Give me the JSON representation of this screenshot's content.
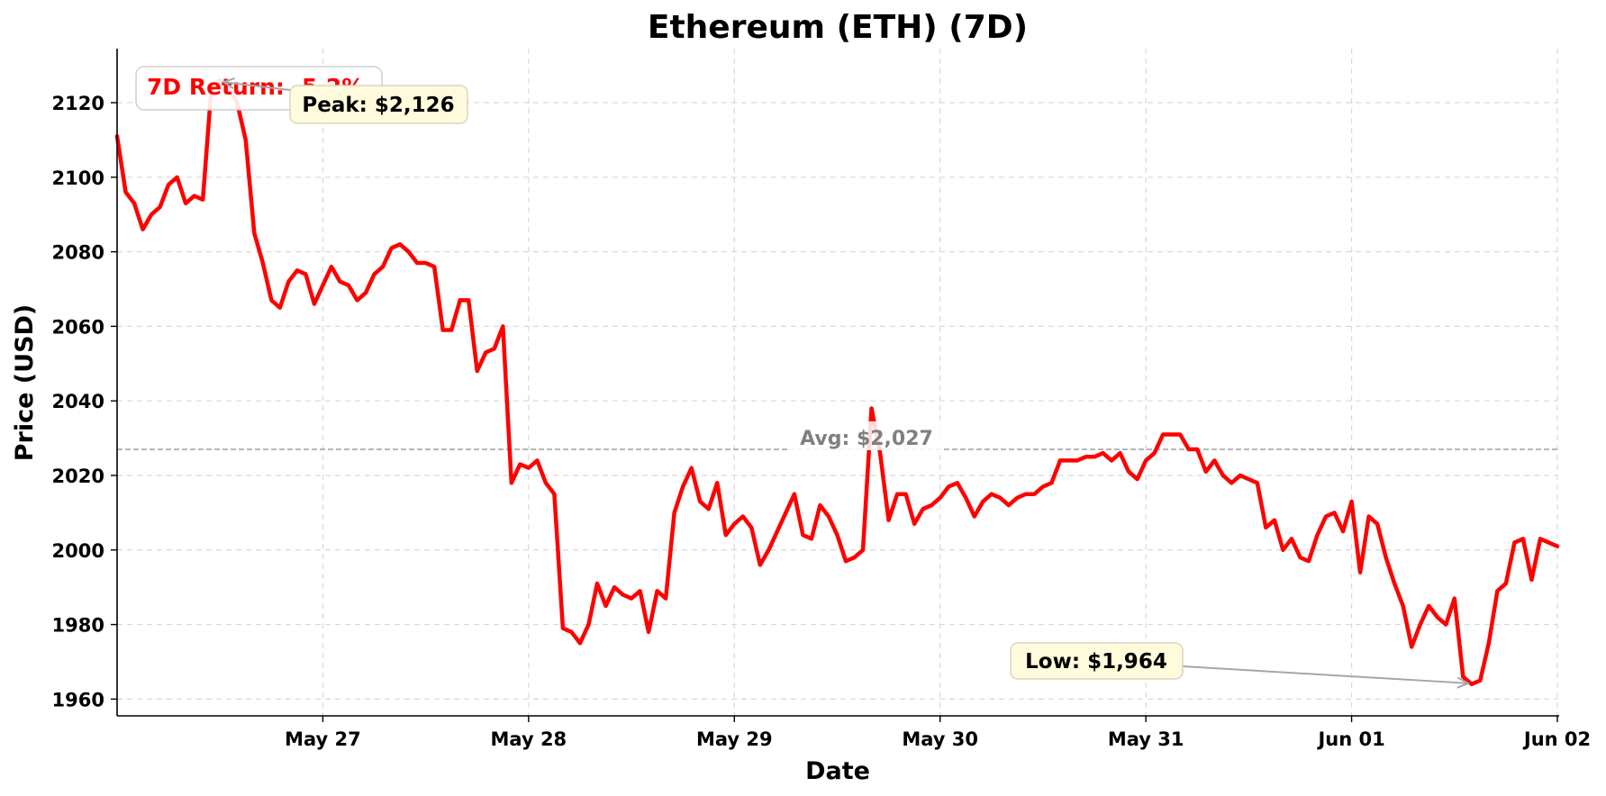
{
  "chart_data": {
    "type": "line",
    "title": "Ethereum (ETH) (7D)",
    "xlabel": "Date",
    "ylabel": "Price (USD)",
    "x_tick_labels": [
      "May 27",
      "May 28",
      "May 29",
      "May 30",
      "May 31",
      "Jun 01",
      "Jun 02"
    ],
    "y_ticks": [
      1960,
      1980,
      2000,
      2020,
      2040,
      2060,
      2080,
      2100,
      2120
    ],
    "ylim": [
      1955.5,
      2134.5
    ],
    "xlim": [
      "2025-05-26 00:00",
      "2025-06-02 00:00"
    ],
    "grid": true,
    "line_color": "#ff0000",
    "series": [
      {
        "name": "",
        "x_hours": [
          0,
          1,
          2,
          3,
          4,
          5,
          6,
          7,
          8,
          9,
          10,
          11,
          12,
          13,
          14,
          15,
          16,
          17,
          18,
          19,
          20,
          21,
          22,
          23,
          24,
          25,
          26,
          27,
          28,
          29,
          30,
          31,
          32,
          33,
          34,
          35,
          36,
          37,
          38,
          39,
          40,
          41,
          42,
          43,
          44,
          45,
          46,
          47,
          48,
          49,
          50,
          51,
          52,
          53,
          54,
          55,
          56,
          57,
          58,
          59,
          60,
          61,
          62,
          63,
          64,
          65,
          66,
          67,
          68,
          69,
          70,
          71,
          72,
          73,
          74,
          75,
          76,
          77,
          78,
          79,
          80,
          81,
          82,
          83,
          84,
          85,
          86,
          87,
          88,
          89,
          90,
          91,
          92,
          93,
          94,
          95,
          96,
          97,
          98,
          99,
          100,
          101,
          102,
          103,
          104,
          105,
          106,
          107,
          108,
          109,
          110,
          111,
          112,
          113,
          114,
          115,
          116,
          117,
          118,
          119,
          120,
          121,
          122,
          123,
          124,
          125,
          126,
          127,
          128,
          129,
          130,
          131,
          132,
          133,
          134,
          135,
          136,
          137,
          138,
          139,
          140,
          141,
          142,
          143,
          144,
          145,
          146,
          147,
          148,
          149,
          150,
          151,
          152,
          153,
          154,
          155,
          156,
          157,
          158,
          159,
          160,
          161,
          162,
          163,
          164,
          165,
          166,
          167,
          168
        ],
        "values": [
          2111,
          2096,
          2093,
          2086,
          2090,
          2092,
          2098,
          2100,
          2093,
          2095,
          2094,
          2124,
          2126,
          2124,
          2120,
          2110,
          2085,
          2077,
          2067,
          2065,
          2072,
          2075,
          2074,
          2066,
          2071,
          2076,
          2072,
          2071,
          2067,
          2069,
          2074,
          2076,
          2081,
          2082,
          2080,
          2077,
          2077,
          2076,
          2059,
          2059,
          2067,
          2067,
          2048,
          2053,
          2054,
          2060,
          2018,
          2023,
          2022,
          2024,
          2018,
          2015,
          1979,
          1978,
          1975,
          1980,
          1991,
          1985,
          1990,
          1988,
          1987,
          1989,
          1978,
          1989,
          1987,
          2010,
          2017,
          2022,
          2013,
          2011,
          2018,
          2004,
          2007,
          2009,
          2006,
          1996,
          2000,
          2005,
          2010,
          2015,
          2004,
          2003,
          2012,
          2009,
          2004,
          1997,
          1998,
          2000,
          2038,
          2026,
          2008,
          2015,
          2015,
          2007,
          2011,
          2012,
          2014,
          2017,
          2018,
          2014,
          2009,
          2013,
          2015,
          2014,
          2012,
          2014,
          2015,
          2015,
          2017,
          2018,
          2024,
          2024,
          2024,
          2025,
          2025,
          2026,
          2024,
          2026,
          2021,
          2019,
          2024,
          2026,
          2031,
          2031,
          2031,
          2027,
          2027,
          2021,
          2024,
          2020,
          2018,
          2020,
          2019,
          2018,
          2006,
          2008,
          2000,
          2003,
          1998,
          1997,
          2004,
          2009,
          2010,
          2005,
          2013,
          1994,
          2009,
          2007,
          1998,
          1991,
          1985,
          1974,
          1980,
          1985,
          1982,
          1980,
          1987,
          1966,
          1964,
          1965,
          1975,
          1989,
          1991,
          2002,
          2003,
          1992,
          2003,
          2002,
          2001
        ]
      }
    ],
    "average": {
      "value": 2027,
      "label": "Avg: $2,027",
      "color": "#a6a6a6"
    },
    "annotations": {
      "peak": {
        "label": "Peak: $2,126",
        "value": 2126,
        "x_hour": 12
      },
      "low": {
        "label": "Low: $1,964",
        "value": 1964,
        "x_hour": 158
      },
      "return": {
        "label": "7D Return: -5.2%",
        "color": "#ff0000"
      }
    },
    "legend": "none"
  }
}
